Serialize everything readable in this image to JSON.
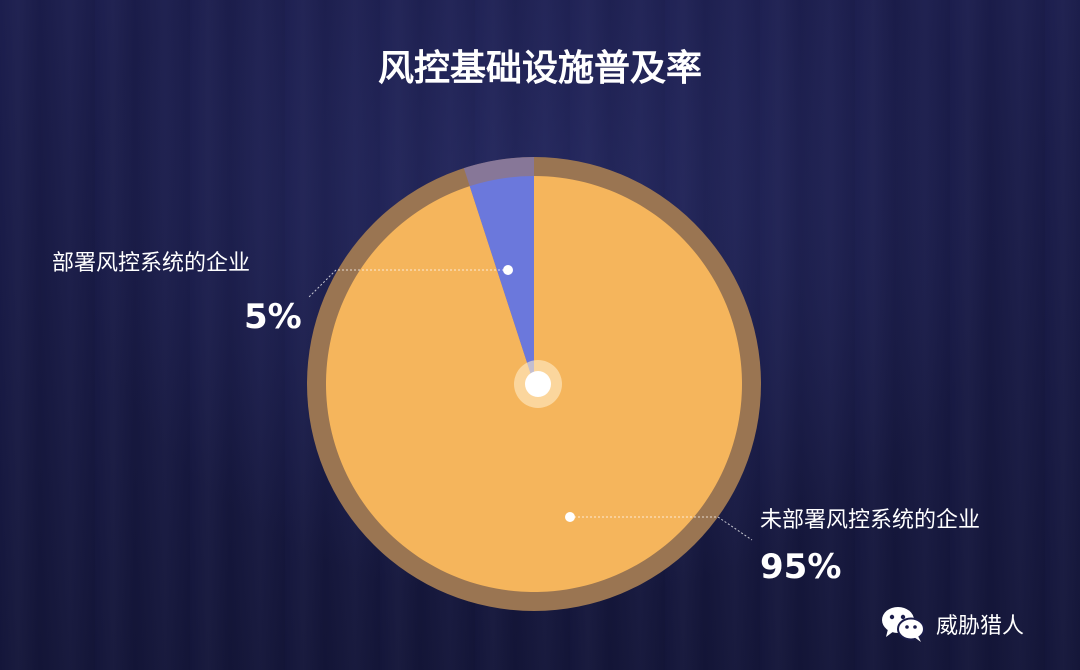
{
  "chart_data": {
    "type": "pie",
    "title": "风控基础设施普及率",
    "slices": [
      {
        "label": "部署风控系统的企业",
        "value": 5,
        "display": "5%",
        "color": "#6b78dc"
      },
      {
        "label": "未部署风控系统的企业",
        "value": 95,
        "display": "95%",
        "color": "#f5b55c"
      }
    ],
    "ring_color": "#9a7552",
    "background_color": "#1a1c4a"
  },
  "watermark": {
    "text": "威胁猎人",
    "icon": "wechat-icon"
  }
}
